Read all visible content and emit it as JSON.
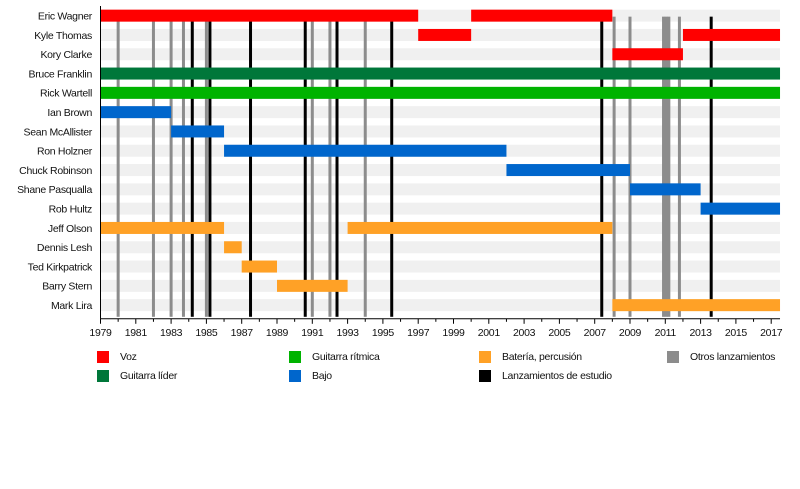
{
  "chart_data": {
    "type": "timeline",
    "title": "",
    "xlim": [
      1979,
      2017.5
    ],
    "x_ticks": [
      "1979",
      "1981",
      "1983",
      "1985",
      "1987",
      "1989",
      "1991",
      "1993",
      "1995",
      "1997",
      "1999",
      "2001",
      "2003",
      "2005",
      "2007",
      "2009",
      "2011",
      "2013",
      "2015",
      "2017"
    ],
    "roles": {
      "voz": {
        "label": "Voz",
        "color": "#ff0000"
      },
      "guitarra_lider": {
        "label": "Guitarra líder",
        "color": "#00773a"
      },
      "guitarra_ritmica": {
        "label": "Guitarra rítmica",
        "color": "#00b300"
      },
      "bajo": {
        "label": "Bajo",
        "color": "#0066cc"
      },
      "bateria": {
        "label": "Batería, percusión",
        "color": "#ffa126"
      },
      "estudio": {
        "label": "Lanzamientos de estudio",
        "color": "#000000"
      },
      "otros": {
        "label": "Otros lanzamientos",
        "color": "#8c8c8c"
      }
    },
    "members": [
      {
        "name": "Eric Wagner",
        "periods": [
          {
            "role": "voz",
            "start": 1979,
            "end": 1997
          },
          {
            "role": "voz",
            "start": 2000,
            "end": 2008
          }
        ]
      },
      {
        "name": "Kyle Thomas",
        "periods": [
          {
            "role": "voz",
            "start": 1997,
            "end": 2000
          },
          {
            "role": "voz",
            "start": 2012,
            "end": 2017.5
          }
        ]
      },
      {
        "name": "Kory Clarke",
        "periods": [
          {
            "role": "voz",
            "start": 2008,
            "end": 2012
          }
        ]
      },
      {
        "name": "Bruce Franklin",
        "periods": [
          {
            "role": "guitarra_lider",
            "start": 1979,
            "end": 2017.5
          }
        ]
      },
      {
        "name": "Rick Wartell",
        "periods": [
          {
            "role": "guitarra_ritmica",
            "start": 1979,
            "end": 2017.5
          }
        ]
      },
      {
        "name": "Ian Brown",
        "periods": [
          {
            "role": "bajo",
            "start": 1979,
            "end": 1983
          }
        ]
      },
      {
        "name": "Sean McAllister",
        "periods": [
          {
            "role": "bajo",
            "start": 1983,
            "end": 1986
          }
        ]
      },
      {
        "name": "Ron Holzner",
        "periods": [
          {
            "role": "bajo",
            "start": 1986,
            "end": 2002
          }
        ]
      },
      {
        "name": "Chuck Robinson",
        "periods": [
          {
            "role": "bajo",
            "start": 2002,
            "end": 2009
          }
        ]
      },
      {
        "name": "Shane Pasqualla",
        "periods": [
          {
            "role": "bajo",
            "start": 2009,
            "end": 2013
          }
        ]
      },
      {
        "name": "Rob Hultz",
        "periods": [
          {
            "role": "bajo",
            "start": 2013,
            "end": 2017.5
          }
        ]
      },
      {
        "name": "Jeff Olson",
        "periods": [
          {
            "role": "bateria",
            "start": 1979,
            "end": 1986
          },
          {
            "role": "bateria",
            "start": 1993,
            "end": 2008
          }
        ]
      },
      {
        "name": "Dennis Lesh",
        "periods": [
          {
            "role": "bateria",
            "start": 1986,
            "end": 1987
          }
        ]
      },
      {
        "name": "Ted Kirkpatrick",
        "periods": [
          {
            "role": "bateria",
            "start": 1987,
            "end": 1989
          }
        ]
      },
      {
        "name": "Barry Stern",
        "periods": [
          {
            "role": "bateria",
            "start": 1989,
            "end": 1993
          }
        ]
      },
      {
        "name": "Mark Lira",
        "periods": [
          {
            "role": "bateria",
            "start": 2008,
            "end": 2017.5
          }
        ]
      }
    ],
    "studio_releases": [
      1984.2,
      1985.2,
      1987.5,
      1990.6,
      1992.4,
      1995.5,
      2007.4,
      2013.6
    ],
    "other_releases": [
      1980,
      1982,
      1983,
      1983.7,
      1985,
      1991,
      1992,
      1994,
      2008.1,
      2009,
      2010.9,
      2011.05,
      2011.2,
      2011.8
    ],
    "legend": [
      {
        "key": "voz",
        "label": "Voz",
        "color": "#ff0000"
      },
      {
        "key": "guitarra_lider",
        "label": "Guitarra líder",
        "color": "#00773a"
      },
      {
        "key": "guitarra_ritmica",
        "label": "Guitarra rítmica",
        "color": "#00b300"
      },
      {
        "key": "bajo",
        "label": "Bajo",
        "color": "#0066cc"
      },
      {
        "key": "bateria",
        "label": "Batería, percusión",
        "color": "#ffa126"
      },
      {
        "key": "estudio",
        "label": "Lanzamientos de estudio",
        "color": "#000000"
      },
      {
        "key": "otros",
        "label": "Otros lanzamientos",
        "color": "#8c8c8c"
      }
    ],
    "legend_position": "bottom"
  }
}
